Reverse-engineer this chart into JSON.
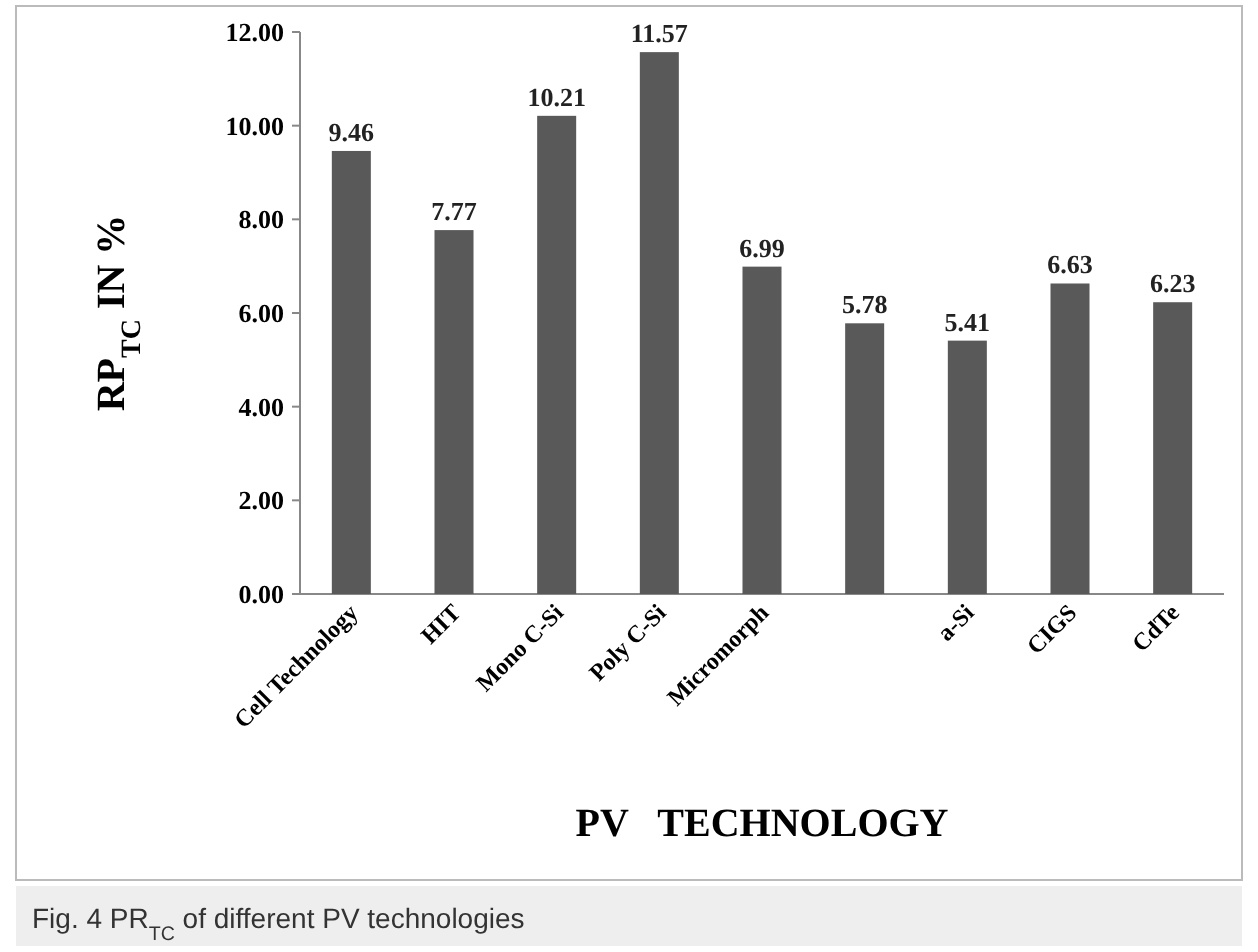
{
  "chart_data": {
    "type": "bar",
    "categories": [
      "Cell Technology",
      "HIT",
      "Mono C-Si",
      "Poly C-Si",
      "Micromorph",
      null,
      "a-Si",
      "CIGS",
      "CdTe"
    ],
    "values": [
      9.46,
      7.77,
      10.21,
      11.57,
      6.99,
      5.78,
      5.41,
      6.63,
      6.23
    ],
    "color": "#595959",
    "xlabel": "PV   TECHNOLOGY",
    "ylabel": "RP$_{TC}$ IN  %",
    "ylim": [
      0,
      12
    ],
    "yticks": [
      {
        "value": 0,
        "label": "0.00"
      },
      {
        "value": 2,
        "label": "2.00"
      },
      {
        "value": 4,
        "label": "4.00"
      },
      {
        "value": 6,
        "label": "6.00"
      },
      {
        "value": 8,
        "label": "8.00"
      },
      {
        "value": 10,
        "label": "10.00"
      },
      {
        "value": 12,
        "label": "12.00"
      }
    ],
    "data_labels": true,
    "annotations": [
      "Fig. 4 PR$_{TC}$ of different PV technologies"
    ]
  }
}
